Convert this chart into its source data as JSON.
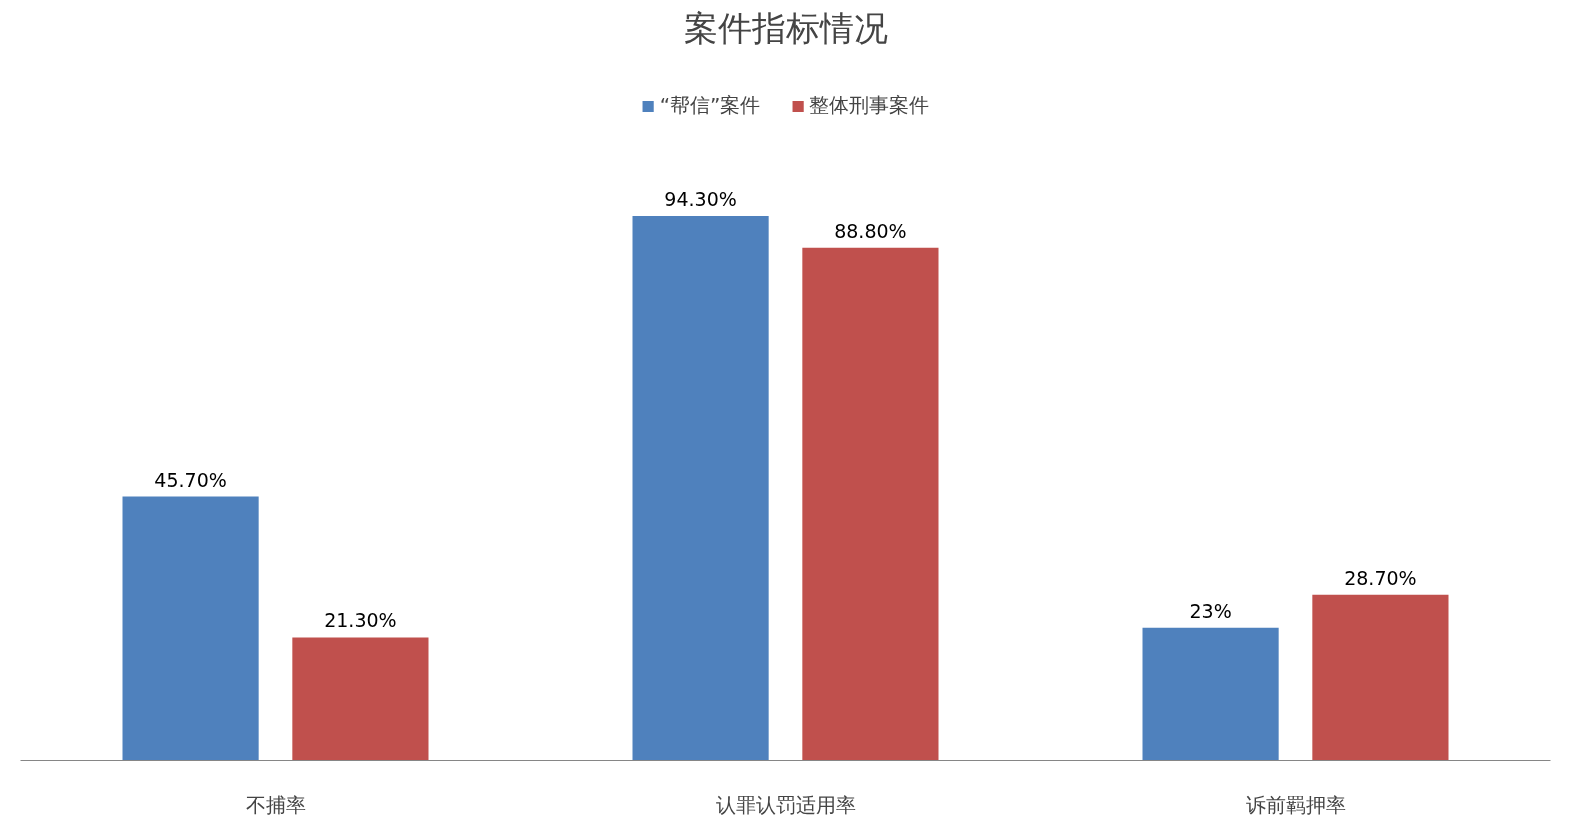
{
  "chart_data": {
    "type": "bar",
    "title": "案件指标情况",
    "categories": [
      "不捕率",
      "认罪认罚适用率",
      "诉前羁押率"
    ],
    "series": [
      {
        "name": "“帮信”案件",
        "color": "#4f81bd",
        "values": [
          45.7,
          94.3,
          23
        ],
        "value_labels": [
          "45.70%",
          "94.30%",
          "23%"
        ]
      },
      {
        "name": "整体刑事案件",
        "color": "#c0504d",
        "values": [
          21.3,
          88.8,
          28.7
        ],
        "value_labels": [
          "21.30%",
          "88.80%",
          "28.70%"
        ]
      }
    ],
    "legend": "top",
    "grid": false
  }
}
